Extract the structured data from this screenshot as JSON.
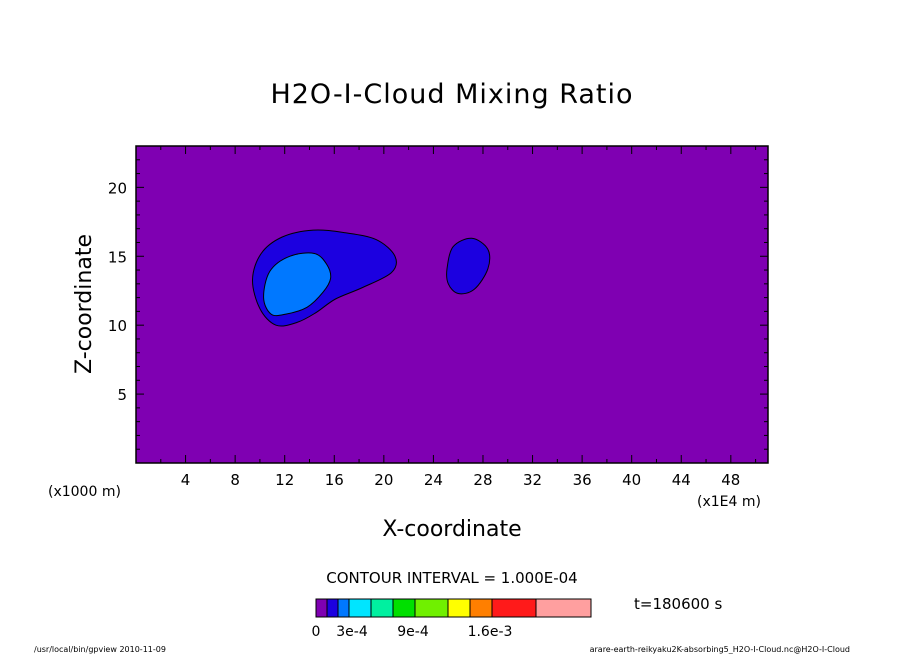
{
  "chart_data": {
    "type": "heatmap",
    "title": "H2O-I-Cloud Mixing Ratio",
    "xlabel": "X-coordinate",
    "ylabel": "Z-coordinate",
    "x_unit_left": "(x1000 m)",
    "x_unit_right": "(x1E4 m)",
    "x_ticks": [
      4,
      8,
      12,
      16,
      20,
      24,
      28,
      32,
      36,
      40,
      44,
      48
    ],
    "y_ticks": [
      5,
      10,
      15,
      20
    ],
    "xlim": [
      0,
      51
    ],
    "ylim": [
      0,
      23
    ],
    "contour_interval_label": "CONTOUR INTERVAL = 1.000E-04",
    "time_label": "t=180600 s",
    "colorbar": {
      "colors": [
        "#7f00b2",
        "#1c00e0",
        "#0078ff",
        "#00e5ff",
        "#00f0a0",
        "#00e000",
        "#70f000",
        "#ffff00",
        "#ff7f00",
        "#ff1a1a",
        "#ff9f9f"
      ],
      "labels": [
        "0",
        "3e-4",
        "9e-4",
        "1.6e-3"
      ]
    },
    "regions": [
      {
        "level": 1,
        "color": "#1c00e0",
        "outline": [
          [
            9.4,
            13.3
          ],
          [
            10.1,
            15.2
          ],
          [
            11.8,
            16.4
          ],
          [
            14.3,
            16.9
          ],
          [
            16.9,
            16.7
          ],
          [
            19.4,
            16.2
          ],
          [
            20.9,
            15.0
          ],
          [
            20.6,
            13.8
          ],
          [
            18.2,
            12.7
          ],
          [
            16.1,
            11.9
          ],
          [
            14.5,
            10.9
          ],
          [
            13.0,
            10.2
          ],
          [
            11.3,
            10.0
          ],
          [
            10.0,
            11.2
          ]
        ]
      },
      {
        "level": 2,
        "color": "#0078ff",
        "outline": [
          [
            10.3,
            12.0
          ],
          [
            10.8,
            13.9
          ],
          [
            12.4,
            15.0
          ],
          [
            14.4,
            15.2
          ],
          [
            15.4,
            14.4
          ],
          [
            15.7,
            13.4
          ],
          [
            15.1,
            12.4
          ],
          [
            13.8,
            11.3
          ],
          [
            12.1,
            10.8
          ],
          [
            10.9,
            10.8
          ]
        ]
      },
      {
        "level": 1,
        "color": "#1c00e0",
        "outline": [
          [
            25.1,
            14.1
          ],
          [
            25.6,
            15.7
          ],
          [
            27.1,
            16.3
          ],
          [
            28.4,
            15.5
          ],
          [
            28.4,
            14.1
          ],
          [
            27.3,
            12.6
          ],
          [
            26.0,
            12.3
          ],
          [
            25.2,
            13.0
          ]
        ]
      }
    ],
    "background_color": "#7f00b2"
  },
  "footer": {
    "left": "/usr/local/bin/gpview  2010-11-09",
    "right": "arare-earth-reikyaku2K-absorbing5_H2O-I-Cloud.nc@H2O-I-Cloud"
  }
}
